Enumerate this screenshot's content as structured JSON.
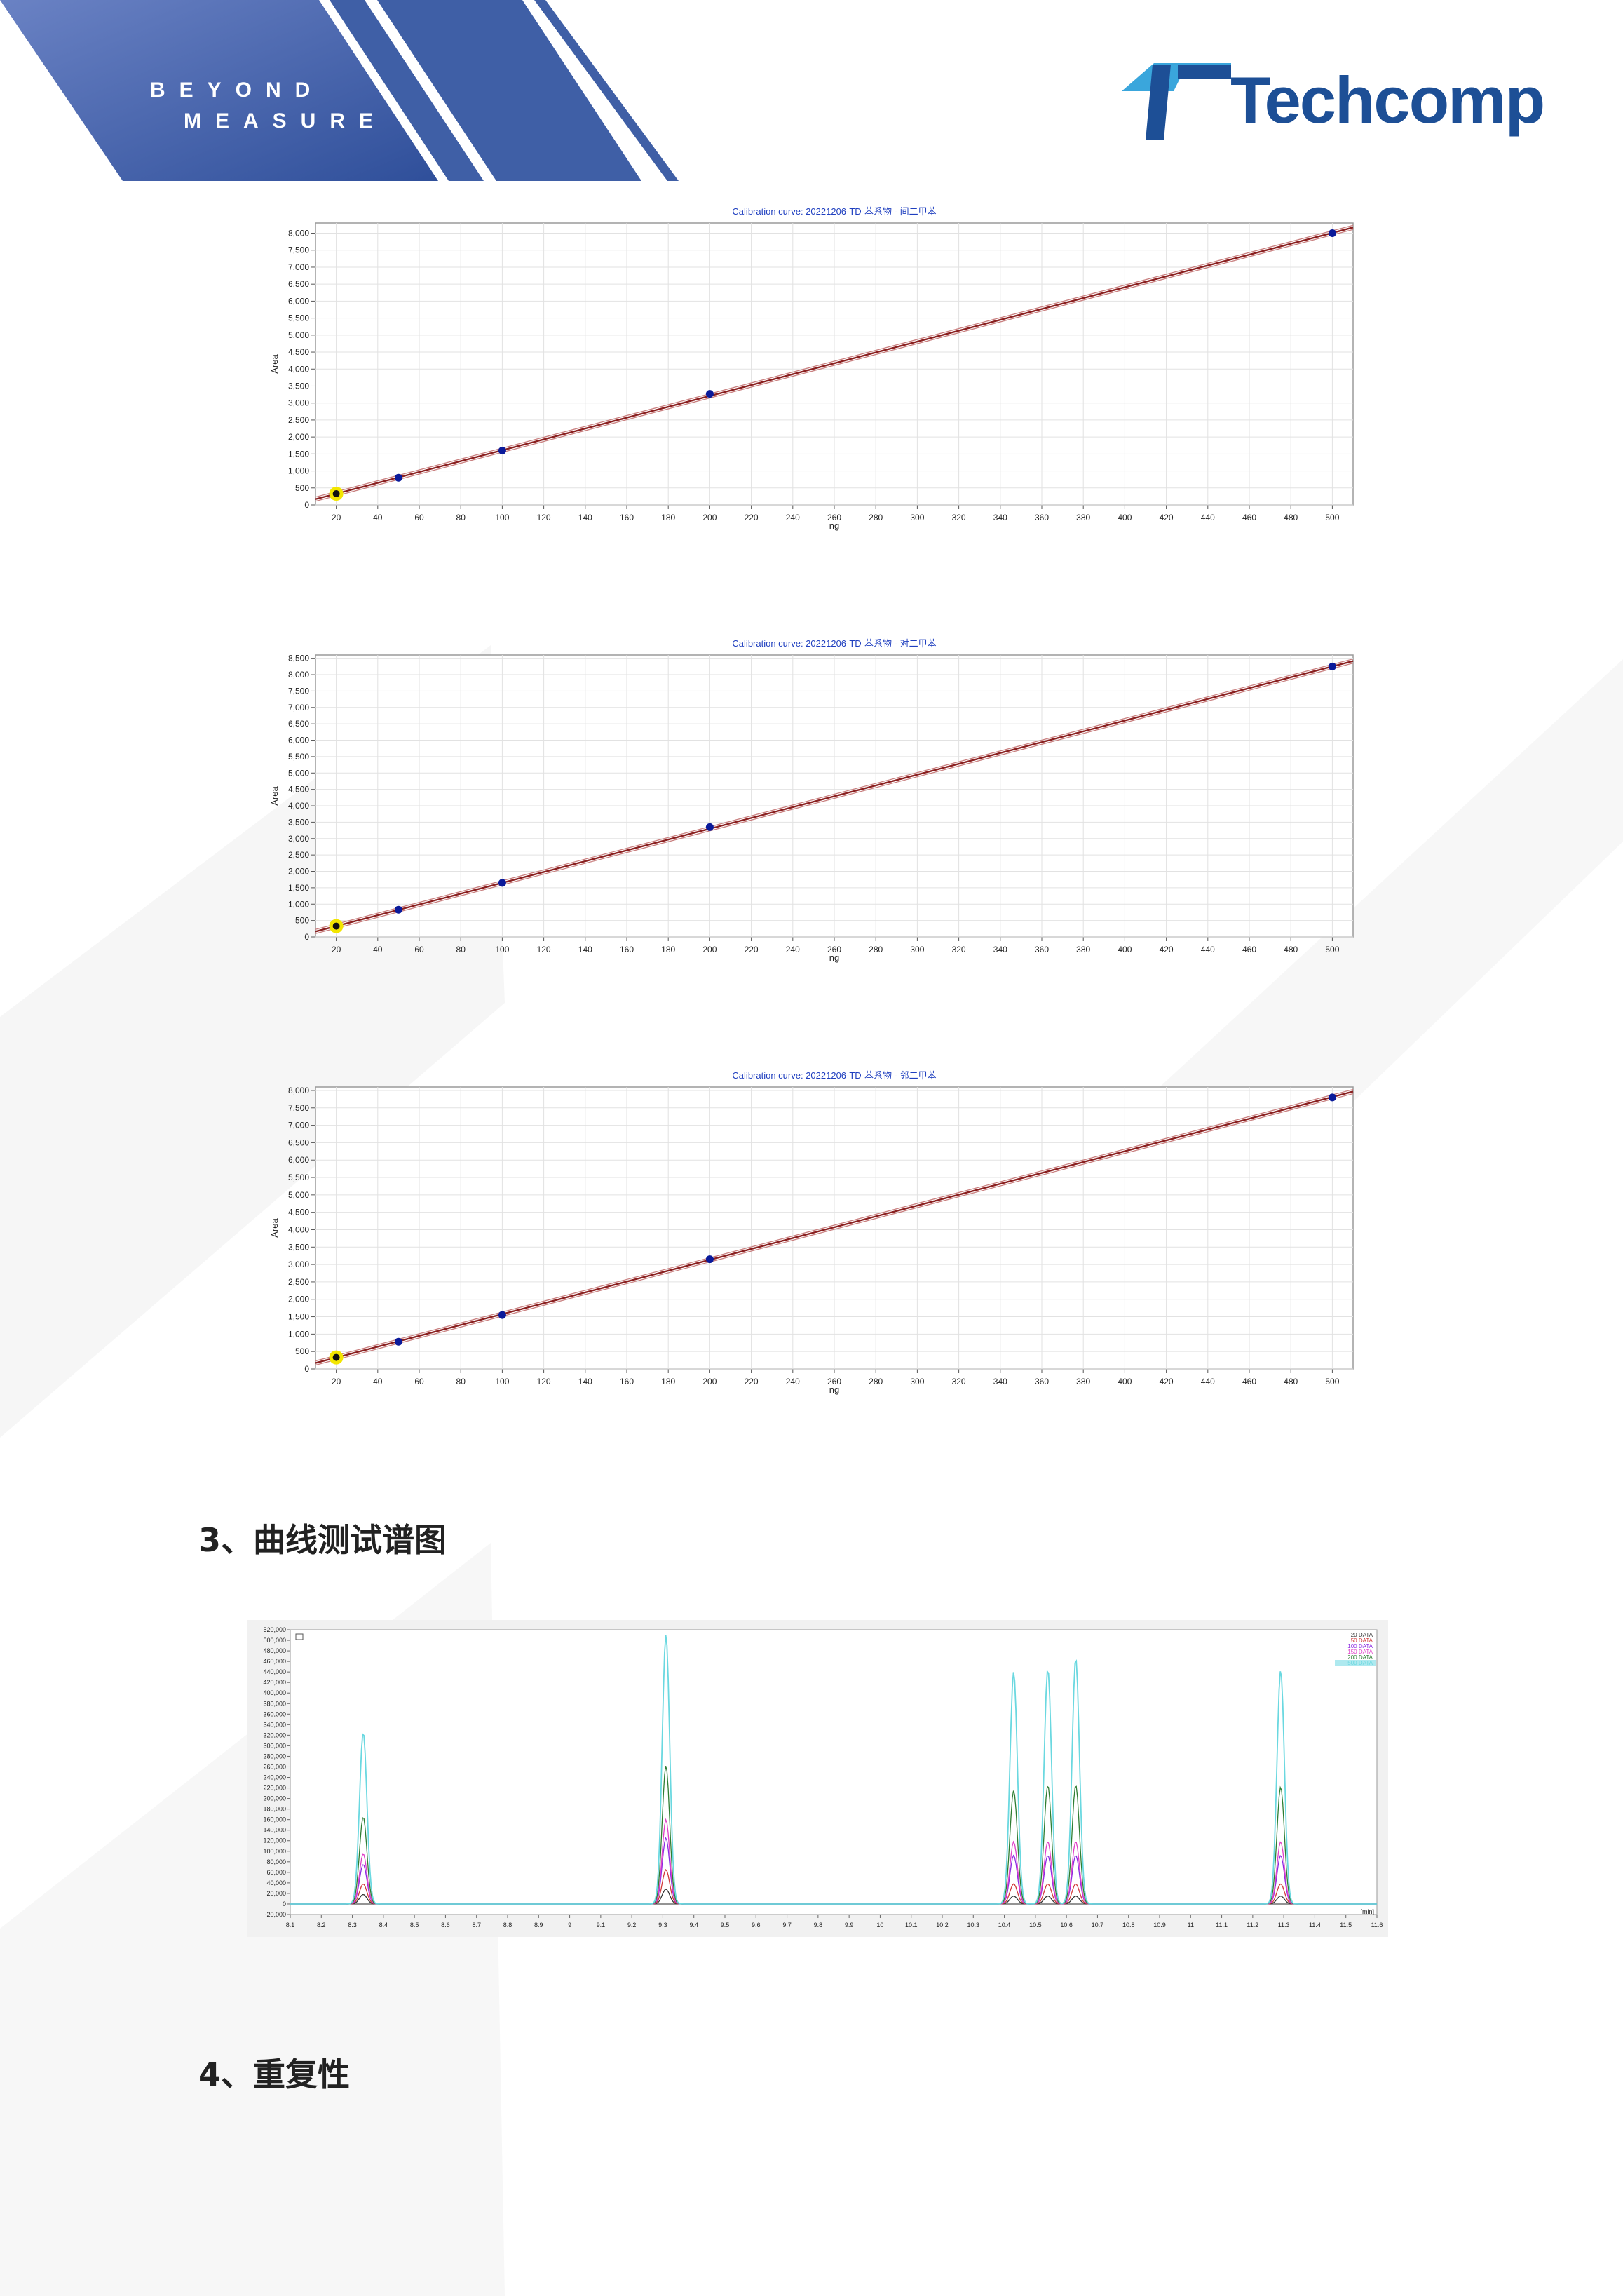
{
  "header": {
    "tagline_line1": "BEYOND",
    "tagline_line2": "MEASURE",
    "brand_name": "Techcomp",
    "band_color": "#3f5fa6",
    "brand_color": "#1d4f96"
  },
  "sections": {
    "curve_spectra_heading": "3、曲线测试谱图",
    "repeatability_heading": "4、重复性"
  },
  "chart_data": [
    {
      "type": "line",
      "title": "Calibration curve: 20221206-TD-苯系物 - 间二甲苯",
      "xlabel": "ng",
      "ylabel": "Area",
      "xlim": [
        10,
        510
      ],
      "ylim": [
        0,
        8300
      ],
      "xticks": [
        20,
        40,
        60,
        80,
        100,
        120,
        140,
        160,
        180,
        200,
        220,
        240,
        260,
        280,
        300,
        320,
        340,
        360,
        380,
        400,
        420,
        440,
        460,
        480,
        500
      ],
      "yticks": [
        0,
        500,
        1000,
        1500,
        2000,
        2500,
        3000,
        3500,
        4000,
        4500,
        5000,
        5500,
        6000,
        6500,
        7000,
        7500,
        8000
      ],
      "grid": true,
      "points": {
        "x": [
          20,
          50,
          100,
          200,
          500
        ],
        "y": [
          330,
          800,
          1600,
          3270,
          8000
        ]
      },
      "fit_line": {
        "x": [
          10,
          510
        ],
        "y": [
          170,
          8170
        ]
      },
      "fit_color": "#8a2020",
      "point_color": "#0a1a9a",
      "highlight_x": 20
    },
    {
      "type": "line",
      "title": "Calibration curve: 20221206-TD-苯系物 - 对二甲苯",
      "xlabel": "ng",
      "ylabel": "Area",
      "xlim": [
        10,
        510
      ],
      "ylim": [
        0,
        8600
      ],
      "xticks": [
        20,
        40,
        60,
        80,
        100,
        120,
        140,
        160,
        180,
        200,
        220,
        240,
        260,
        280,
        300,
        320,
        340,
        360,
        380,
        400,
        420,
        440,
        460,
        480,
        500
      ],
      "yticks": [
        0,
        500,
        1000,
        1500,
        2000,
        2500,
        3000,
        3500,
        4000,
        4500,
        5000,
        5500,
        6000,
        6500,
        7000,
        7500,
        8000,
        8500
      ],
      "grid": true,
      "points": {
        "x": [
          20,
          50,
          100,
          200,
          500
        ],
        "y": [
          330,
          830,
          1650,
          3350,
          8250
        ]
      },
      "fit_line": {
        "x": [
          10,
          510
        ],
        "y": [
          165,
          8415
        ]
      },
      "fit_color": "#8a2020",
      "point_color": "#0a1a9a",
      "highlight_x": 20
    },
    {
      "type": "line",
      "title": "Calibration curve: 20221206-TD-苯系物 - 邻二甲苯",
      "xlabel": "ng",
      "ylabel": "Area",
      "xlim": [
        10,
        510
      ],
      "ylim": [
        0,
        8100
      ],
      "xticks": [
        20,
        40,
        60,
        80,
        100,
        120,
        140,
        160,
        180,
        200,
        220,
        240,
        260,
        280,
        300,
        320,
        340,
        360,
        380,
        400,
        420,
        440,
        460,
        480,
        500
      ],
      "yticks": [
        0,
        500,
        1000,
        1500,
        2000,
        2500,
        3000,
        3500,
        4000,
        4500,
        5000,
        5500,
        6000,
        6500,
        7000,
        7500,
        8000
      ],
      "grid": true,
      "points": {
        "x": [
          20,
          50,
          100,
          200,
          500
        ],
        "y": [
          330,
          780,
          1550,
          3150,
          7800
        ]
      },
      "fit_line": {
        "x": [
          10,
          510
        ],
        "y": [
          170,
          7970
        ]
      },
      "fit_color": "#8a2020",
      "point_color": "#0a1a9a",
      "highlight_x": 20
    },
    {
      "type": "line",
      "x_unit_label": "[min]",
      "xlim": [
        8.1,
        11.6
      ],
      "ylim": [
        -20000,
        520000
      ],
      "xticks": [
        8.1,
        8.2,
        8.3,
        8.4,
        8.5,
        8.6,
        8.7,
        8.8,
        8.9,
        9,
        9.1,
        9.2,
        9.3,
        9.4,
        9.5,
        9.6,
        9.7,
        9.8,
        9.9,
        10,
        10.1,
        10.2,
        10.3,
        10.4,
        10.5,
        10.6,
        10.7,
        10.8,
        10.9,
        11,
        11.1,
        11.2,
        11.3,
        11.4,
        11.5,
        11.6
      ],
      "yticks": [
        -20000,
        0,
        20000,
        40000,
        60000,
        80000,
        100000,
        120000,
        140000,
        160000,
        180000,
        200000,
        220000,
        240000,
        260000,
        280000,
        300000,
        320000,
        340000,
        360000,
        380000,
        400000,
        420000,
        440000,
        460000,
        480000,
        500000,
        520000
      ],
      "peaks_x": [
        8.335,
        9.31,
        10.43,
        10.54,
        10.63,
        11.29
      ],
      "peak_width": 0.012,
      "series": [
        {
          "name": "20 DATA",
          "color": "#333333",
          "heights": [
            18000,
            28000,
            15000,
            15000,
            15000,
            15000
          ]
        },
        {
          "name": "50 DATA",
          "color": "#d23a3a",
          "heights": [
            38000,
            65000,
            38000,
            38000,
            38000,
            38000
          ]
        },
        {
          "name": "100 DATA",
          "color": "#8a2be2",
          "heights": [
            75000,
            125000,
            92000,
            92000,
            92000,
            92000
          ]
        },
        {
          "name": "150 DATA",
          "color": "#e040c8",
          "heights": [
            95000,
            160000,
            118000,
            118000,
            118000,
            118000
          ]
        },
        {
          "name": "200 DATA",
          "color": "#2e7d32",
          "heights": [
            165000,
            262000,
            215000,
            225000,
            225000,
            222000
          ]
        },
        {
          "name": "500 DATA",
          "color": "#6ad8e0",
          "heights": [
            325000,
            510000,
            440000,
            445000,
            465000,
            443000
          ]
        }
      ]
    }
  ]
}
